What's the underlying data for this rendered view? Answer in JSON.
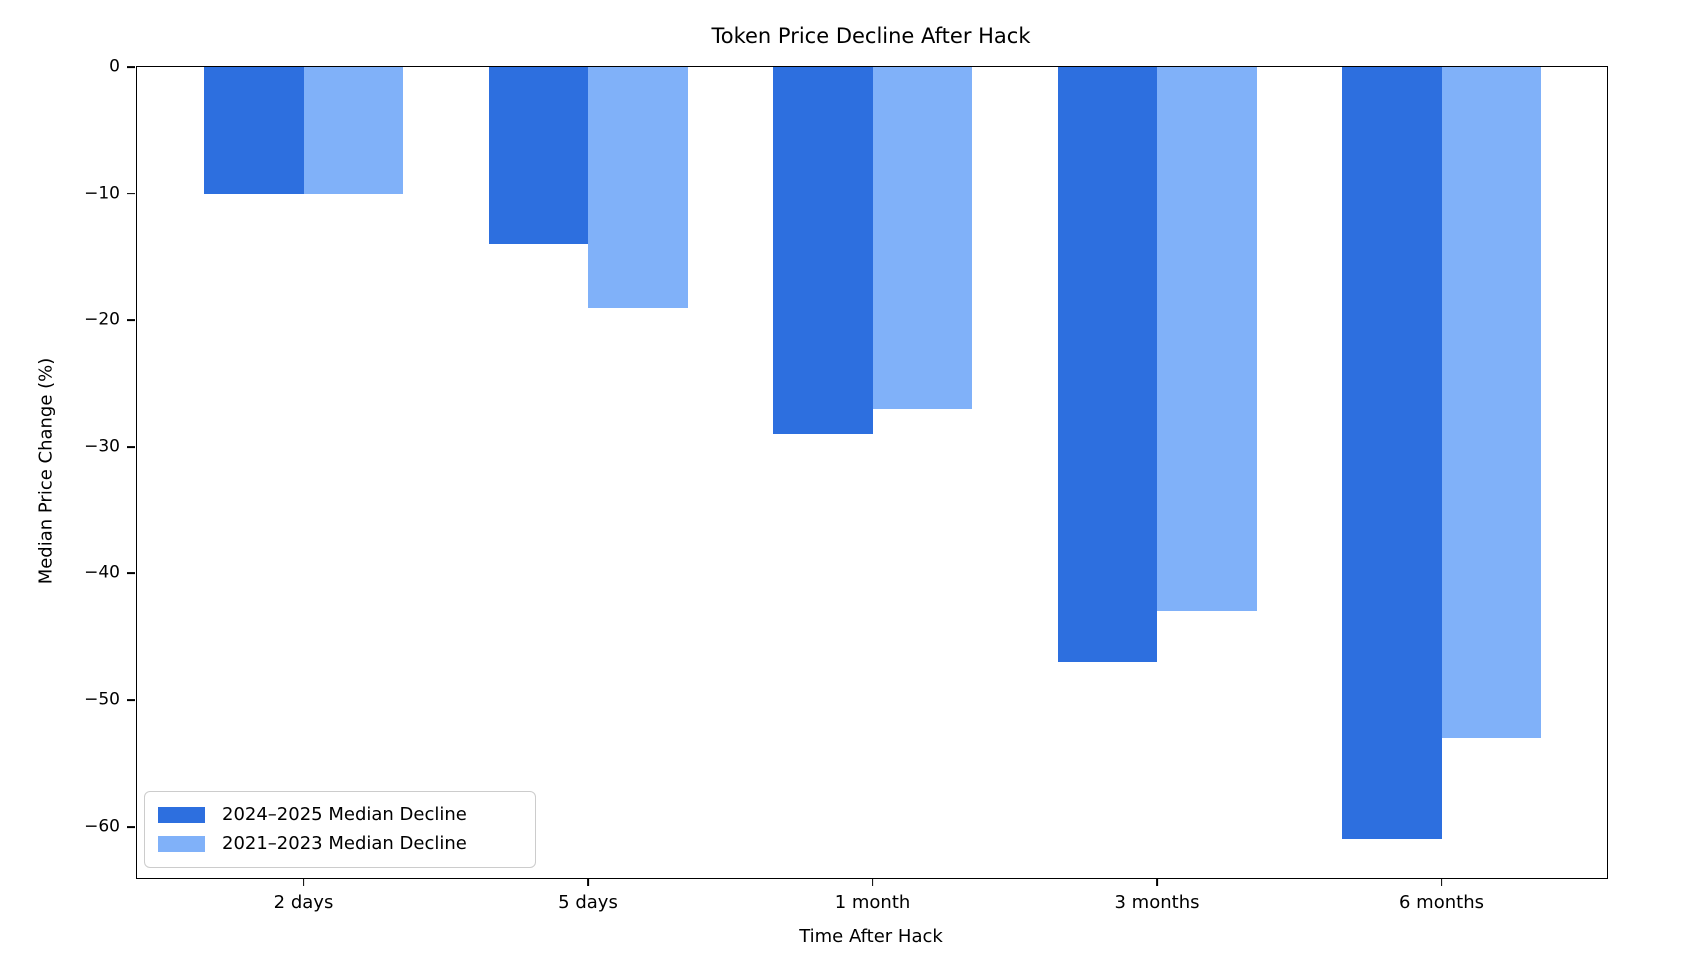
{
  "chart_data": {
    "type": "bar",
    "title": "Token Price Decline After Hack",
    "xlabel": "Time After Hack",
    "ylabel": "Median Price Change (%)",
    "categories": [
      "2 days",
      "5 days",
      "1 month",
      "3 months",
      "6 months"
    ],
    "series": [
      {
        "name": "2024–2025 Median Decline",
        "color": "#2d6fdf",
        "values": [
          -10,
          -14,
          -29,
          -47,
          -61
        ]
      },
      {
        "name": "2021–2023 Median Decline",
        "color": "#80b1f9",
        "values": [
          -10,
          -19,
          -27,
          -43,
          -53
        ]
      }
    ],
    "ylim": [
      -64.05,
      0
    ],
    "yticks": [
      0,
      -10,
      -20,
      -30,
      -40,
      -50,
      -60
    ],
    "legend_position": "lower left",
    "grid": false,
    "background_color": "#ffffff",
    "bar_colors": {
      "series_2024_2025": "#2d6fdf",
      "series_2021_2023": "#80b1f9"
    }
  }
}
